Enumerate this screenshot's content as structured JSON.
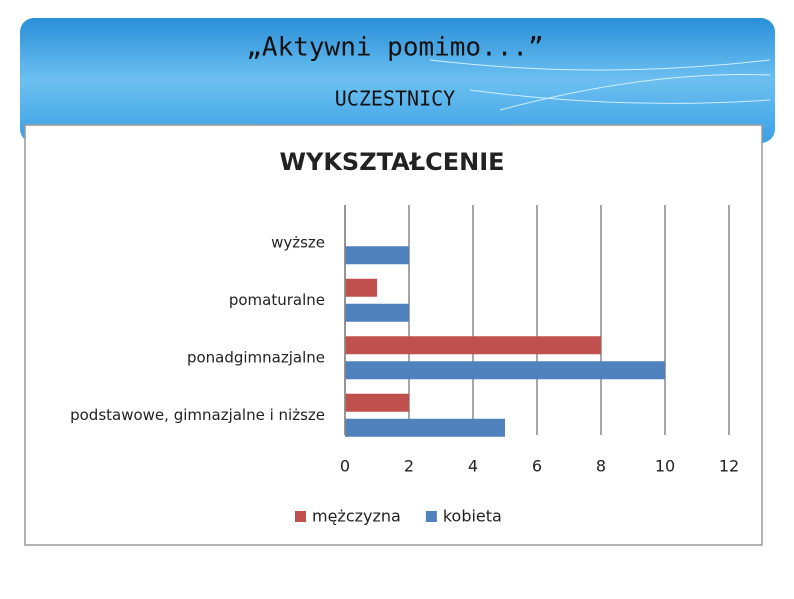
{
  "header": {
    "title": "„Aktywni pomimo...”",
    "subtitle": "UCZESTNICY"
  },
  "chart_data": {
    "type": "hbar",
    "title": "WYKSZTAŁCENIE",
    "categories": [
      "wyższe",
      "pomaturalne",
      "ponadgimnazjalne",
      "podstawowe, gimnazjalne  i niższe"
    ],
    "series": [
      {
        "name": "mężczyzna",
        "color": "#c0504d",
        "values": [
          0,
          1,
          8,
          2
        ]
      },
      {
        "name": "kobieta",
        "color": "#4f81bd",
        "values": [
          2,
          2,
          10,
          5
        ]
      }
    ],
    "xlim": [
      0,
      12
    ],
    "xticks": [
      0,
      2,
      4,
      6,
      8,
      10,
      12
    ],
    "grid": true,
    "legend": "bottom"
  }
}
